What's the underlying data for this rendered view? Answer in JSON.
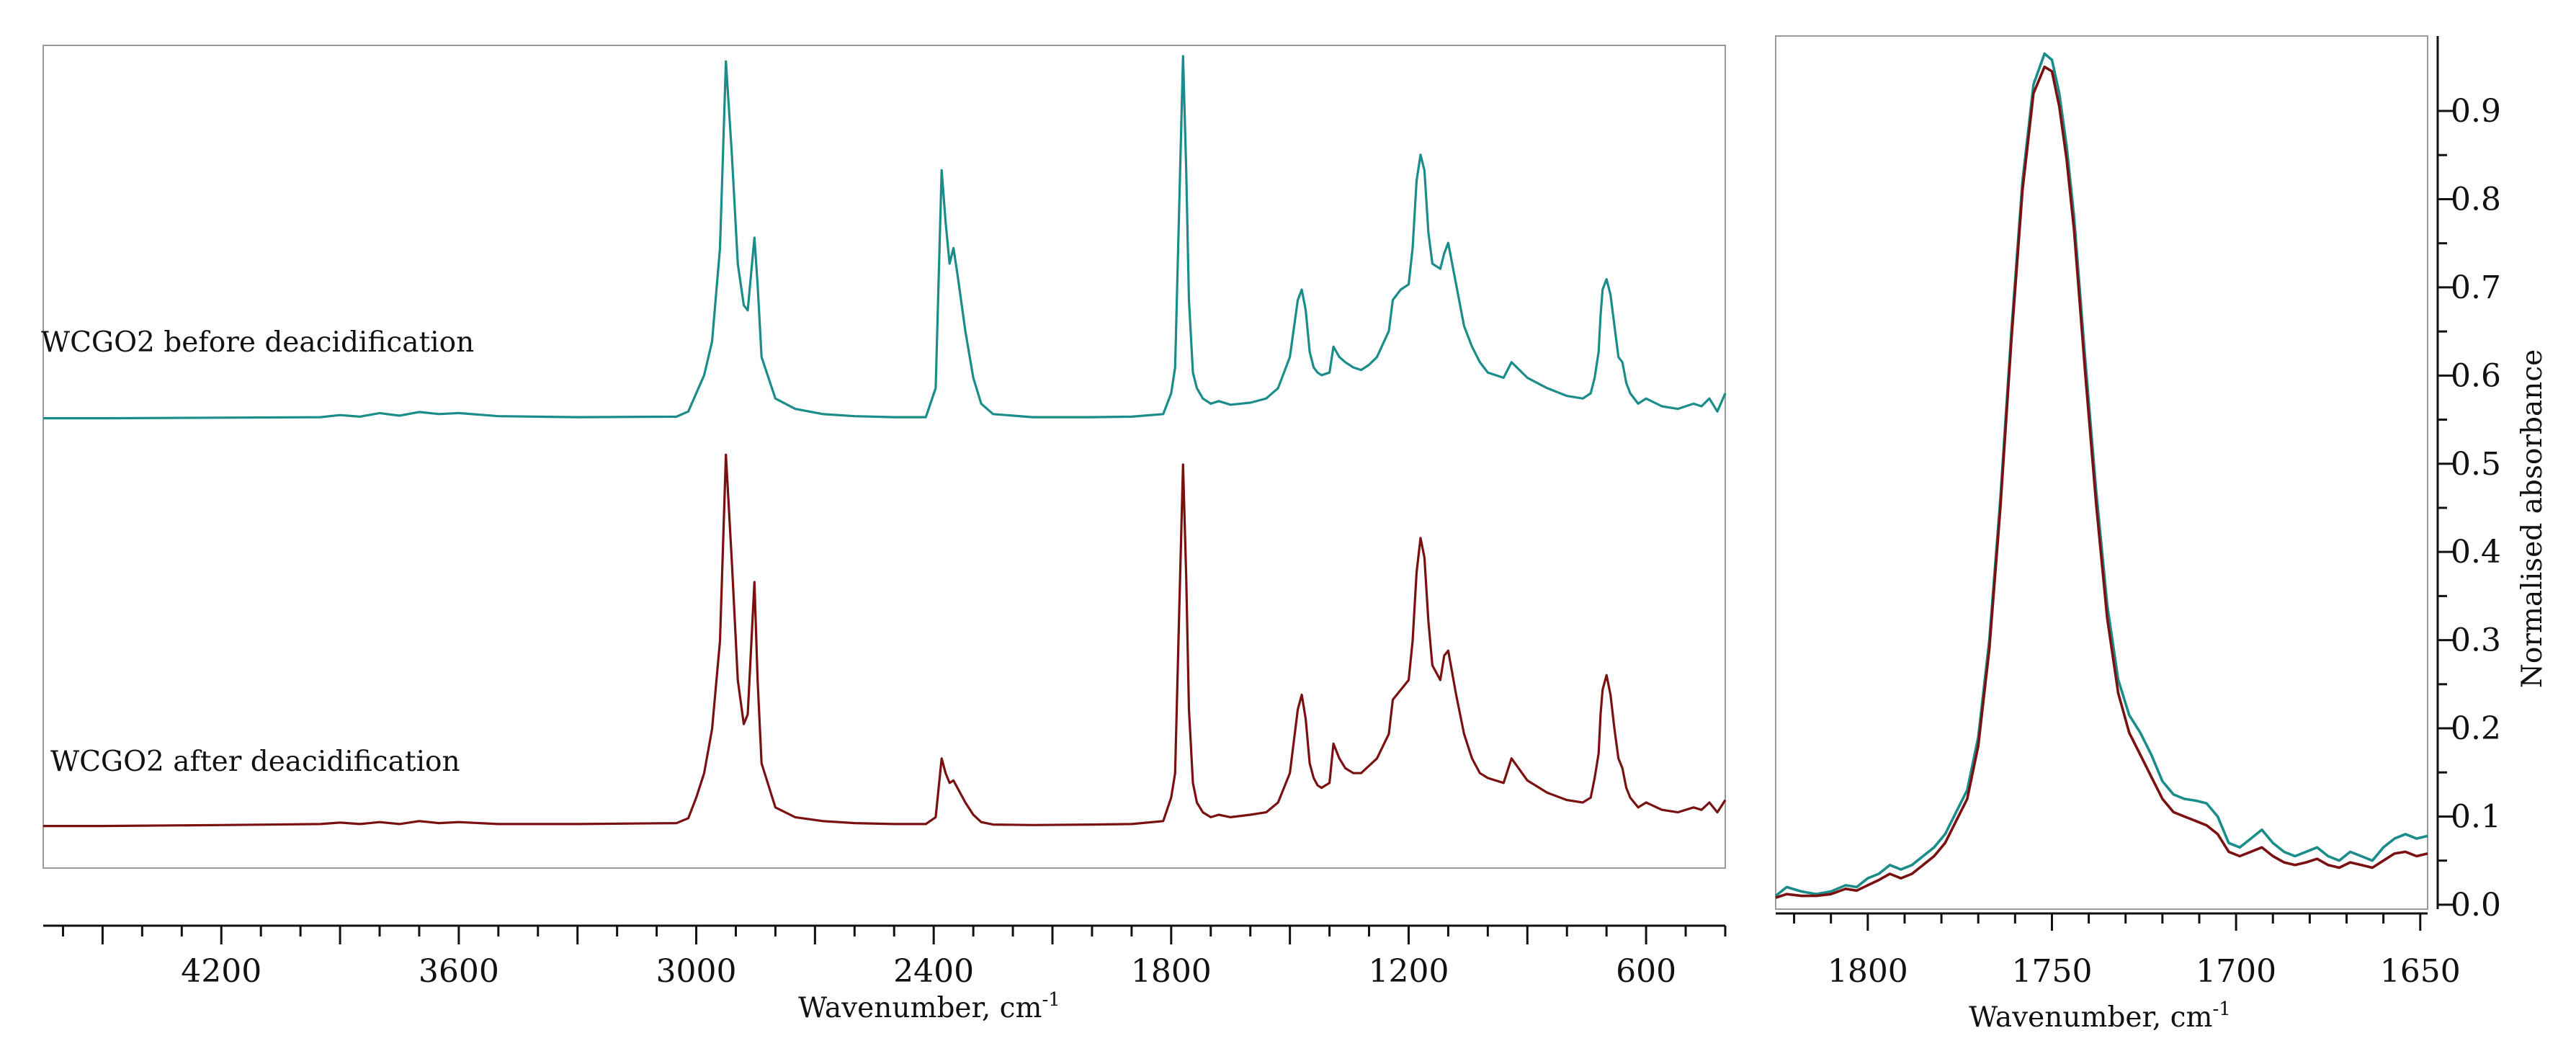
{
  "chart_data": [
    {
      "type": "line",
      "title": "",
      "xlabel": "Wavenumber, cm",
      "xlabel_superscript": "-1",
      "ylabel": "",
      "xlim": [
        4650,
        400
      ],
      "x_reversed": true,
      "x_ticks": [
        4200,
        3600,
        3000,
        2400,
        1800,
        1200,
        600
      ],
      "grid": false,
      "series": [
        {
          "name": "WCGO2 before deacidification",
          "color": "#1a8c8a",
          "x": [
            4650,
            4500,
            4200,
            3950,
            3900,
            3850,
            3800,
            3750,
            3700,
            3650,
            3600,
            3500,
            3300,
            3050,
            3020,
            3000,
            2980,
            2960,
            2940,
            2925,
            2910,
            2895,
            2880,
            2870,
            2853,
            2845,
            2835,
            2800,
            2750,
            2680,
            2600,
            2500,
            2420,
            2395,
            2380,
            2370,
            2360,
            2350,
            2340,
            2320,
            2300,
            2280,
            2250,
            2150,
            2000,
            1900,
            1820,
            1800,
            1790,
            1780,
            1770,
            1762,
            1755,
            1745,
            1735,
            1720,
            1700,
            1680,
            1650,
            1600,
            1560,
            1530,
            1500,
            1480,
            1470,
            1460,
            1450,
            1440,
            1430,
            1420,
            1400,
            1390,
            1375,
            1360,
            1340,
            1320,
            1300,
            1280,
            1250,
            1240,
            1220,
            1200,
            1190,
            1180,
            1170,
            1160,
            1150,
            1140,
            1120,
            1110,
            1100,
            1080,
            1060,
            1040,
            1020,
            1000,
            960,
            940,
            900,
            850,
            800,
            760,
            740,
            730,
            720,
            715,
            710,
            700,
            690,
            680,
            670,
            660,
            650,
            640,
            620,
            600,
            560,
            520,
            480,
            460,
            440,
            420,
            400
          ],
          "values": [
            0.002,
            0.002,
            0.003,
            0.004,
            0.008,
            0.005,
            0.012,
            0.007,
            0.014,
            0.01,
            0.012,
            0.006,
            0.004,
            0.005,
            0.015,
            0.05,
            0.085,
            0.15,
            0.33,
            0.69,
            0.51,
            0.3,
            0.22,
            0.21,
            0.35,
            0.26,
            0.12,
            0.04,
            0.02,
            0.01,
            0.006,
            0.004,
            0.004,
            0.06,
            0.48,
            0.38,
            0.3,
            0.33,
            0.28,
            0.17,
            0.08,
            0.03,
            0.01,
            0.004,
            0.004,
            0.005,
            0.01,
            0.05,
            0.1,
            0.4,
            0.7,
            0.48,
            0.23,
            0.09,
            0.06,
            0.04,
            0.03,
            0.035,
            0.028,
            0.032,
            0.04,
            0.06,
            0.12,
            0.23,
            0.25,
            0.21,
            0.13,
            0.1,
            0.09,
            0.085,
            0.09,
            0.14,
            0.12,
            0.11,
            0.1,
            0.095,
            0.105,
            0.12,
            0.17,
            0.23,
            0.25,
            0.26,
            0.33,
            0.46,
            0.51,
            0.48,
            0.36,
            0.3,
            0.29,
            0.32,
            0.34,
            0.26,
            0.18,
            0.14,
            0.11,
            0.09,
            0.08,
            0.11,
            0.08,
            0.06,
            0.045,
            0.04,
            0.05,
            0.08,
            0.13,
            0.2,
            0.25,
            0.27,
            0.24,
            0.18,
            0.12,
            0.11,
            0.07,
            0.05,
            0.03,
            0.04,
            0.025,
            0.02,
            0.03,
            0.025,
            0.04,
            0.015,
            0.05
          ]
        },
        {
          "name": "WCGO2 after deacidification",
          "color": "#7a1010",
          "x": [
            4650,
            4500,
            4200,
            3950,
            3900,
            3850,
            3800,
            3750,
            3700,
            3650,
            3600,
            3500,
            3300,
            3050,
            3020,
            3000,
            2980,
            2960,
            2940,
            2925,
            2910,
            2895,
            2880,
            2870,
            2853,
            2845,
            2835,
            2800,
            2750,
            2680,
            2600,
            2500,
            2420,
            2395,
            2380,
            2370,
            2360,
            2350,
            2340,
            2320,
            2300,
            2280,
            2250,
            2150,
            2000,
            1900,
            1820,
            1800,
            1790,
            1780,
            1770,
            1762,
            1755,
            1745,
            1735,
            1720,
            1700,
            1680,
            1650,
            1600,
            1560,
            1530,
            1500,
            1480,
            1470,
            1460,
            1450,
            1440,
            1430,
            1420,
            1400,
            1390,
            1375,
            1360,
            1340,
            1320,
            1300,
            1280,
            1250,
            1240,
            1220,
            1200,
            1190,
            1180,
            1170,
            1160,
            1150,
            1140,
            1120,
            1110,
            1100,
            1080,
            1060,
            1040,
            1020,
            1000,
            960,
            940,
            900,
            850,
            800,
            760,
            740,
            730,
            720,
            715,
            710,
            700,
            690,
            680,
            670,
            660,
            650,
            640,
            620,
            600,
            560,
            520,
            480,
            460,
            440,
            420,
            400
          ],
          "values": [
            0.002,
            0.002,
            0.004,
            0.006,
            0.009,
            0.006,
            0.01,
            0.006,
            0.012,
            0.008,
            0.01,
            0.006,
            0.006,
            0.008,
            0.018,
            0.06,
            0.11,
            0.2,
            0.38,
            0.76,
            0.54,
            0.3,
            0.21,
            0.23,
            0.5,
            0.3,
            0.13,
            0.04,
            0.02,
            0.012,
            0.008,
            0.006,
            0.006,
            0.02,
            0.14,
            0.11,
            0.09,
            0.095,
            0.08,
            0.05,
            0.025,
            0.01,
            0.005,
            0.004,
            0.005,
            0.006,
            0.012,
            0.06,
            0.11,
            0.43,
            0.74,
            0.51,
            0.24,
            0.09,
            0.05,
            0.03,
            0.02,
            0.025,
            0.02,
            0.025,
            0.03,
            0.05,
            0.11,
            0.24,
            0.27,
            0.22,
            0.13,
            0.1,
            0.085,
            0.08,
            0.09,
            0.17,
            0.14,
            0.12,
            0.11,
            0.11,
            0.125,
            0.14,
            0.19,
            0.26,
            0.28,
            0.3,
            0.38,
            0.52,
            0.59,
            0.55,
            0.42,
            0.33,
            0.3,
            0.35,
            0.36,
            0.27,
            0.19,
            0.14,
            0.11,
            0.1,
            0.09,
            0.14,
            0.095,
            0.07,
            0.055,
            0.05,
            0.06,
            0.1,
            0.15,
            0.23,
            0.28,
            0.31,
            0.27,
            0.2,
            0.14,
            0.12,
            0.08,
            0.06,
            0.04,
            0.05,
            0.035,
            0.03,
            0.04,
            0.035,
            0.05,
            0.03,
            0.055
          ]
        }
      ]
    },
    {
      "type": "line",
      "title": "",
      "xlabel": "Wavenumber, cm",
      "xlabel_superscript": "-1",
      "ylabel": "Normalised absorbance",
      "xlim": [
        1825,
        1648
      ],
      "x_reversed": true,
      "ylim": [
        -0.005,
        0.985
      ],
      "x_ticks": [
        1800,
        1750,
        1700,
        1650
      ],
      "y_ticks": [
        0.0,
        0.1,
        0.2,
        0.3,
        0.4,
        0.5,
        0.6,
        0.7,
        0.8,
        0.9
      ],
      "y_tick_labels": [
        "0.0",
        "0.1",
        "0.2",
        "0.3",
        "0.4",
        "0.5",
        "0.6",
        "0.7",
        "0.8",
        "0.9"
      ],
      "grid": false,
      "series": [
        {
          "color": "#1a8c8a",
          "x": [
            1825,
            1822,
            1818,
            1814,
            1810,
            1806,
            1803,
            1800,
            1797,
            1794,
            1791,
            1788,
            1785,
            1782,
            1779,
            1776,
            1773,
            1770,
            1767,
            1764,
            1761,
            1758,
            1755,
            1752,
            1750,
            1748,
            1746,
            1744,
            1741,
            1738,
            1735,
            1732,
            1729,
            1726,
            1723,
            1720,
            1717,
            1714,
            1711,
            1708,
            1705,
            1702,
            1699,
            1696,
            1693,
            1690,
            1687,
            1684,
            1681,
            1678,
            1675,
            1672,
            1669,
            1666,
            1663,
            1660,
            1657,
            1654,
            1651,
            1648
          ],
          "values": [
            0.01,
            0.02,
            0.015,
            0.012,
            0.015,
            0.022,
            0.02,
            0.03,
            0.035,
            0.045,
            0.04,
            0.045,
            0.055,
            0.065,
            0.08,
            0.105,
            0.13,
            0.19,
            0.3,
            0.46,
            0.65,
            0.82,
            0.93,
            0.965,
            0.958,
            0.92,
            0.86,
            0.78,
            0.62,
            0.47,
            0.34,
            0.255,
            0.215,
            0.195,
            0.17,
            0.14,
            0.125,
            0.12,
            0.118,
            0.115,
            0.1,
            0.07,
            0.065,
            0.075,
            0.085,
            0.07,
            0.06,
            0.055,
            0.06,
            0.065,
            0.055,
            0.05,
            0.06,
            0.055,
            0.05,
            0.065,
            0.075,
            0.08,
            0.075,
            0.078
          ]
        },
        {
          "color": "#7a1010",
          "x": [
            1825,
            1822,
            1818,
            1814,
            1810,
            1806,
            1803,
            1800,
            1797,
            1794,
            1791,
            1788,
            1785,
            1782,
            1779,
            1776,
            1773,
            1770,
            1767,
            1764,
            1761,
            1758,
            1755,
            1752,
            1750,
            1748,
            1746,
            1744,
            1741,
            1738,
            1735,
            1732,
            1729,
            1726,
            1723,
            1720,
            1717,
            1714,
            1711,
            1708,
            1705,
            1702,
            1699,
            1696,
            1693,
            1690,
            1687,
            1684,
            1681,
            1678,
            1675,
            1672,
            1669,
            1666,
            1663,
            1660,
            1657,
            1654,
            1651,
            1648
          ],
          "values": [
            0.008,
            0.012,
            0.01,
            0.01,
            0.012,
            0.018,
            0.016,
            0.022,
            0.028,
            0.035,
            0.03,
            0.035,
            0.045,
            0.055,
            0.07,
            0.095,
            0.12,
            0.18,
            0.29,
            0.45,
            0.64,
            0.81,
            0.92,
            0.95,
            0.945,
            0.905,
            0.845,
            0.765,
            0.605,
            0.455,
            0.325,
            0.24,
            0.195,
            0.17,
            0.145,
            0.12,
            0.105,
            0.1,
            0.095,
            0.09,
            0.08,
            0.06,
            0.055,
            0.06,
            0.065,
            0.055,
            0.048,
            0.045,
            0.048,
            0.052,
            0.045,
            0.042,
            0.048,
            0.045,
            0.042,
            0.05,
            0.058,
            0.06,
            0.055,
            0.058
          ]
        }
      ]
    }
  ]
}
